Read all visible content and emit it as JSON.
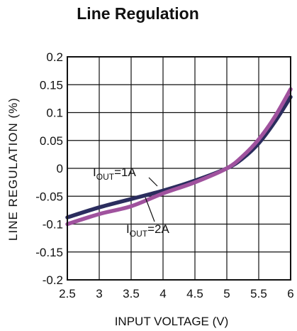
{
  "chart_data": {
    "type": "line",
    "title": "Line Regulation",
    "xlabel": "INPUT VOLTAGE (V)",
    "ylabel": "LINE REGULATION (%)",
    "xlim": [
      2.5,
      6
    ],
    "ylim": [
      -0.2,
      0.2
    ],
    "x_ticks": [
      2.5,
      3,
      3.5,
      4,
      4.5,
      5,
      5.5,
      6
    ],
    "x_tick_labels": [
      "2.5",
      "3",
      "3.5",
      "4",
      "4.5",
      "5",
      "5.5",
      "6"
    ],
    "y_ticks": [
      0.2,
      0.15,
      0.1,
      0.05,
      0,
      -0.05,
      -0.1,
      -0.15,
      -0.2
    ],
    "y_tick_labels": [
      "0.2",
      "0.15",
      "0.1",
      "0.05",
      "0",
      "-0.05",
      "-0.1",
      "-0.15",
      "-0.2"
    ],
    "grid": true,
    "series": [
      {
        "color": "#2b2d5e",
        "x": [
          2.5,
          3.0,
          3.5,
          4.0,
          4.5,
          5.0,
          5.25,
          5.5,
          5.75,
          6.0
        ],
        "values": [
          -0.088,
          -0.07,
          -0.055,
          -0.04,
          -0.022,
          0.0,
          0.018,
          0.045,
          0.083,
          0.128
        ]
      },
      {
        "color": "#a0529e",
        "x": [
          2.5,
          3.0,
          3.5,
          4.0,
          4.5,
          5.0,
          5.25,
          5.5,
          5.75,
          6.0
        ],
        "values": [
          -0.1,
          -0.082,
          -0.068,
          -0.045,
          -0.025,
          0.0,
          0.022,
          0.052,
          0.092,
          0.142
        ]
      }
    ],
    "annotations": [
      {
        "main": "I",
        "sub": "OUT",
        "rest": "=1A",
        "series_index": 0
      },
      {
        "main": "I",
        "sub": "OUT",
        "rest": "=2A",
        "series_index": 1
      }
    ]
  }
}
